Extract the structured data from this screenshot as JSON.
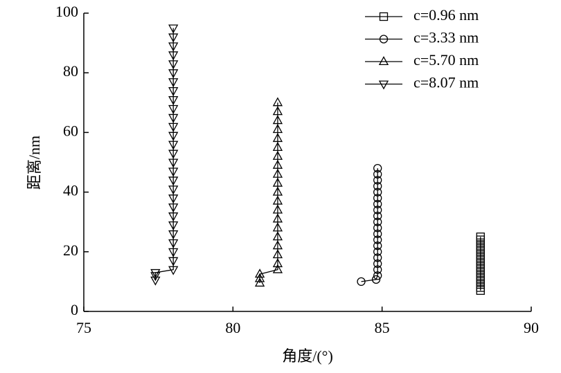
{
  "chart_data": {
    "type": "line",
    "x_label": "角度/(°)",
    "y_label": "距离/nm",
    "xlim": [
      75,
      90
    ],
    "xticks": [
      75,
      80,
      85,
      90
    ],
    "ylim": [
      0,
      100
    ],
    "yticks": [
      0,
      20,
      40,
      60,
      80,
      100
    ],
    "legend": "upper right",
    "series": [
      {
        "name": "c=0.96 nm",
        "marker": "square",
        "color": "#000000",
        "x": [
          88.3,
          88.3,
          88.3,
          88.3,
          88.3,
          88.3,
          88.3,
          88.3,
          88.3,
          88.3,
          88.3,
          88.3,
          88.3,
          88.3,
          88.3,
          88.3,
          88.3,
          88.3,
          88.3
        ],
        "values": [
          7,
          8,
          9,
          10,
          11,
          12,
          13,
          14,
          15,
          16,
          17,
          18,
          19,
          20,
          21,
          22,
          23,
          24,
          25
        ]
      },
      {
        "name": "c=3.33 nm",
        "marker": "circle",
        "color": "#000000",
        "x": [
          84.3,
          84.8,
          84.85,
          84.85,
          84.85,
          84.85,
          84.85,
          84.85,
          84.85,
          84.85,
          84.85,
          84.85,
          84.85,
          84.85,
          84.85,
          84.85,
          84.85,
          84.85,
          84.85,
          84.85,
          84.85
        ],
        "values": [
          10,
          10.7,
          12,
          14,
          16,
          18,
          20,
          22,
          24,
          26,
          28,
          30,
          32,
          34,
          36,
          38,
          40,
          42,
          44,
          46,
          48
        ]
      },
      {
        "name": "c=5.70 nm",
        "marker": "triangle-up",
        "color": "#000000",
        "x": [
          80.9,
          80.9,
          80.9,
          81.5,
          81.5,
          81.5,
          81.5,
          81.5,
          81.5,
          81.5,
          81.5,
          81.5,
          81.5,
          81.5,
          81.5,
          81.5,
          81.5,
          81.5,
          81.5,
          81.5,
          81.5,
          81.5,
          81.5
        ],
        "values": [
          9.5,
          11,
          12.5,
          14,
          16,
          19,
          22,
          25,
          28,
          31,
          34,
          37,
          40,
          43,
          46,
          49,
          52,
          55,
          58,
          61,
          64,
          67,
          70
        ]
      },
      {
        "name": "c=8.07 nm",
        "marker": "triangle-down",
        "color": "#000000",
        "x": [
          77.4,
          77.4,
          77.4,
          78,
          78,
          78,
          78,
          78,
          78,
          78,
          78,
          78,
          78,
          78,
          78,
          78,
          78,
          78,
          78,
          78,
          78,
          78,
          78,
          78,
          78,
          78,
          78,
          78,
          78,
          78,
          78
        ],
        "values": [
          10.5,
          12,
          13,
          14,
          17,
          20,
          23,
          26,
          29,
          32,
          35,
          38,
          41,
          44,
          47,
          50,
          53,
          56,
          59,
          62,
          65,
          68,
          71,
          74,
          77,
          80,
          83,
          86,
          89,
          92,
          95
        ]
      }
    ]
  }
}
